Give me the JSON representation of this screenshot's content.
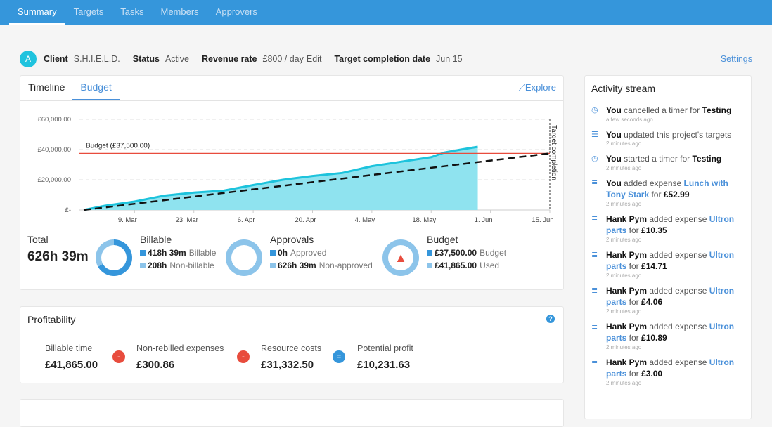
{
  "nav": {
    "tabs": [
      {
        "label": "Summary",
        "active": true
      },
      {
        "label": "Targets"
      },
      {
        "label": "Tasks"
      },
      {
        "label": "Members"
      },
      {
        "label": "Approvers"
      }
    ]
  },
  "header": {
    "avatar": "A",
    "client_label": "Client",
    "client": "S.H.I.E.L.D.",
    "status_label": "Status",
    "status": "Active",
    "rate_label": "Revenue rate",
    "rate": "£800 / day",
    "edit": "Edit",
    "target_label": "Target completion date",
    "target": "Jun 15",
    "settings": "Settings"
  },
  "overview": {
    "tabs": [
      "Timeline",
      "Budget"
    ],
    "active_tab": "Budget",
    "explore": "Explore",
    "total_label": "Total",
    "total": "626h 39m",
    "billable": {
      "title": "Billable",
      "a_val": "418h 39m",
      "a_lbl": "Billable",
      "b_val": "208h",
      "b_lbl": "Non-billable",
      "fraction": 0.668
    },
    "approvals": {
      "title": "Approvals",
      "a_val": "0h",
      "a_lbl": "Approved",
      "b_val": "626h 39m",
      "b_lbl": "Non-approved",
      "fraction": 0
    },
    "budget": {
      "title": "Budget",
      "a_val": "£37,500.00",
      "a_lbl": "Budget",
      "b_val": "£41,865.00",
      "b_lbl": "Used",
      "icon": "warning-icon"
    }
  },
  "chart_data": {
    "type": "area",
    "xlim": [
      "Feb 24",
      "Jun 15"
    ],
    "ylim": [
      0,
      60000
    ],
    "grid": true,
    "y_ticks": [
      {
        "v": 60000,
        "label": "£60,000.00"
      },
      {
        "v": 40000,
        "label": "£40,000.00"
      },
      {
        "v": 20000,
        "label": "£20,000.00"
      },
      {
        "v": 0,
        "label": "£-"
      }
    ],
    "x_ticks": [
      {
        "d": "Mar 9",
        "label": "9. Mar"
      },
      {
        "d": "Mar 23",
        "label": "23. Mar"
      },
      {
        "d": "Apr 6",
        "label": "6. Apr"
      },
      {
        "d": "Apr 20",
        "label": "20. Apr"
      },
      {
        "d": "May 4",
        "label": "4. May"
      },
      {
        "d": "May 18",
        "label": "18. May"
      },
      {
        "d": "Jun 1",
        "label": "1. Jun"
      },
      {
        "d": "Jun 15",
        "label": "15. Jun"
      }
    ],
    "series": {
      "x": [
        "Feb 25",
        "Mar 2",
        "Mar 9",
        "Mar 16",
        "Mar 23",
        "Mar 30",
        "Apr 6",
        "Apr 13",
        "Apr 20",
        "Apr 27",
        "May 4",
        "May 11",
        "May 18",
        "May 21",
        "May 25",
        "May 29"
      ],
      "y": [
        0,
        2800,
        5600,
        9500,
        11500,
        12800,
        16500,
        20000,
        22500,
        24500,
        29000,
        32000,
        35000,
        38000,
        40000,
        41865
      ]
    },
    "budget_line": {
      "value": 37500,
      "label": "Budget (£37,500.00)"
    },
    "target_line": {
      "from": [
        "Feb 25",
        0
      ],
      "to": [
        "Jun 15",
        37500
      ]
    },
    "target_marker": {
      "d": "Jun 15",
      "label": "Target completion"
    },
    "colors": {
      "area": "#8fe3ef",
      "line": "#1dc3dc",
      "budget": "#e84c3d",
      "target": "#111"
    }
  },
  "profitability": {
    "title": "Profitability",
    "items": [
      {
        "label": "Billable time",
        "value": "£41,865.00"
      },
      {
        "label": "Non-rebilled expenses",
        "value": "£300.86"
      },
      {
        "label": "Resource costs",
        "value": "£31,332.50"
      },
      {
        "label": "Potential profit",
        "value": "£10,231.63"
      }
    ],
    "ops": [
      "-",
      "-",
      "="
    ]
  },
  "activity": {
    "title": "Activity stream",
    "items": [
      {
        "icon": "clock-icon",
        "who": "You",
        "text": " cancelled a timer for ",
        "obj": "Testing",
        "obj_link": false,
        "tail": "",
        "amount": "",
        "time": "a few seconds ago"
      },
      {
        "icon": "targets-icon",
        "who": "You",
        "text": " updated this project's targets",
        "obj": "",
        "obj_link": false,
        "tail": "",
        "amount": "",
        "time": "2 minutes ago"
      },
      {
        "icon": "clock-icon",
        "who": "You",
        "text": " started a timer for ",
        "obj": "Testing",
        "obj_link": false,
        "tail": "",
        "amount": "",
        "time": "2 minutes ago"
      },
      {
        "icon": "expense-icon",
        "who": "You",
        "text": " added expense ",
        "obj": "Lunch with Tony Stark",
        "obj_link": true,
        "tail": " for ",
        "amount": "£52.99",
        "time": "2 minutes ago"
      },
      {
        "icon": "expense-icon",
        "who": "Hank Pym",
        "text": " added expense ",
        "obj": "Ultron parts",
        "obj_link": true,
        "tail": " for ",
        "amount": "£10.35",
        "time": "2 minutes ago"
      },
      {
        "icon": "expense-icon",
        "who": "Hank Pym",
        "text": " added expense ",
        "obj": "Ultron parts",
        "obj_link": true,
        "tail": " for ",
        "amount": "£14.71",
        "time": "2 minutes ago"
      },
      {
        "icon": "expense-icon",
        "who": "Hank Pym",
        "text": " added expense ",
        "obj": "Ultron parts",
        "obj_link": true,
        "tail": " for ",
        "amount": "£4.06",
        "time": "2 minutes ago"
      },
      {
        "icon": "expense-icon",
        "who": "Hank Pym",
        "text": " added expense ",
        "obj": "Ultron parts",
        "obj_link": true,
        "tail": " for ",
        "amount": "£10.89",
        "time": "2 minutes ago"
      },
      {
        "icon": "expense-icon",
        "who": "Hank Pym",
        "text": " added expense ",
        "obj": "Ultron parts",
        "obj_link": true,
        "tail": " for ",
        "amount": "£3.00",
        "time": "2 minutes ago"
      }
    ]
  }
}
